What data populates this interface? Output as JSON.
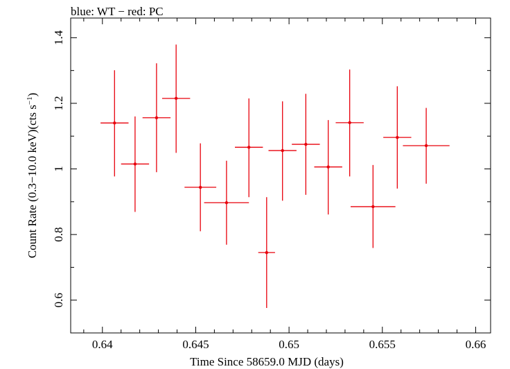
{
  "chart_data": {
    "type": "scatter",
    "title": "blue: WT − red: PC",
    "xlabel": "Time Since 58659.0 MJD (days)",
    "ylabel_main": "Count Rate (0.3−10.0 keV)(cts s",
    "ylabel_sup": "−1",
    "ylabel_end": ")",
    "xlim": [
      0.6383,
      0.6608
    ],
    "ylim": [
      0.5,
      1.46
    ],
    "xticks": [
      0.64,
      0.645,
      0.65,
      0.655,
      0.66
    ],
    "xtick_labels": [
      "0.64",
      "0.645",
      "0.65",
      "0.655",
      "0.66"
    ],
    "yticks": [
      0.6,
      0.8,
      1.0,
      1.2,
      1.4
    ],
    "ytick_labels": [
      "0.6",
      "0.8",
      "1",
      "1.2",
      "1.4"
    ],
    "series": [
      {
        "color": "#e8000b",
        "points": [
          {
            "x": 0.64065,
            "xerr": 0.00075,
            "y": 1.14,
            "ylo": 0.977,
            "yhi": 1.301
          },
          {
            "x": 0.64175,
            "xerr": 0.00075,
            "y": 1.015,
            "ylo": 0.869,
            "yhi": 1.16
          },
          {
            "x": 0.6429,
            "xerr": 0.00075,
            "y": 1.156,
            "ylo": 0.99,
            "yhi": 1.322
          },
          {
            "x": 0.64395,
            "xerr": 0.00075,
            "y": 1.215,
            "ylo": 1.049,
            "yhi": 1.379
          },
          {
            "x": 0.64525,
            "xerr": 0.00085,
            "y": 0.944,
            "ylo": 0.81,
            "yhi": 1.078
          },
          {
            "x": 0.64665,
            "xerr": 0.0012,
            "y": 0.897,
            "ylo": 0.769,
            "yhi": 1.025
          },
          {
            "x": 0.64785,
            "xerr": 0.00075,
            "y": 1.066,
            "ylo": 0.914,
            "yhi": 1.215
          },
          {
            "x": 0.6488,
            "xerr": 0.00045,
            "y": 0.745,
            "ylo": 0.576,
            "yhi": 0.914
          },
          {
            "x": 0.64965,
            "xerr": 0.00075,
            "y": 1.056,
            "ylo": 0.903,
            "yhi": 1.206
          },
          {
            "x": 0.6509,
            "xerr": 0.00075,
            "y": 1.075,
            "ylo": 0.921,
            "yhi": 1.229
          },
          {
            "x": 0.6521,
            "xerr": 0.00075,
            "y": 1.006,
            "ylo": 0.861,
            "yhi": 1.149
          },
          {
            "x": 0.65325,
            "xerr": 0.00075,
            "y": 1.141,
            "ylo": 0.977,
            "yhi": 1.303
          },
          {
            "x": 0.6545,
            "xerr": 0.0012,
            "y": 0.885,
            "ylo": 0.759,
            "yhi": 1.012
          },
          {
            "x": 0.6558,
            "xerr": 0.00075,
            "y": 1.096,
            "ylo": 0.94,
            "yhi": 1.252
          },
          {
            "x": 0.65735,
            "xerr": 0.00125,
            "y": 1.071,
            "ylo": 0.955,
            "yhi": 1.186
          }
        ]
      }
    ]
  }
}
